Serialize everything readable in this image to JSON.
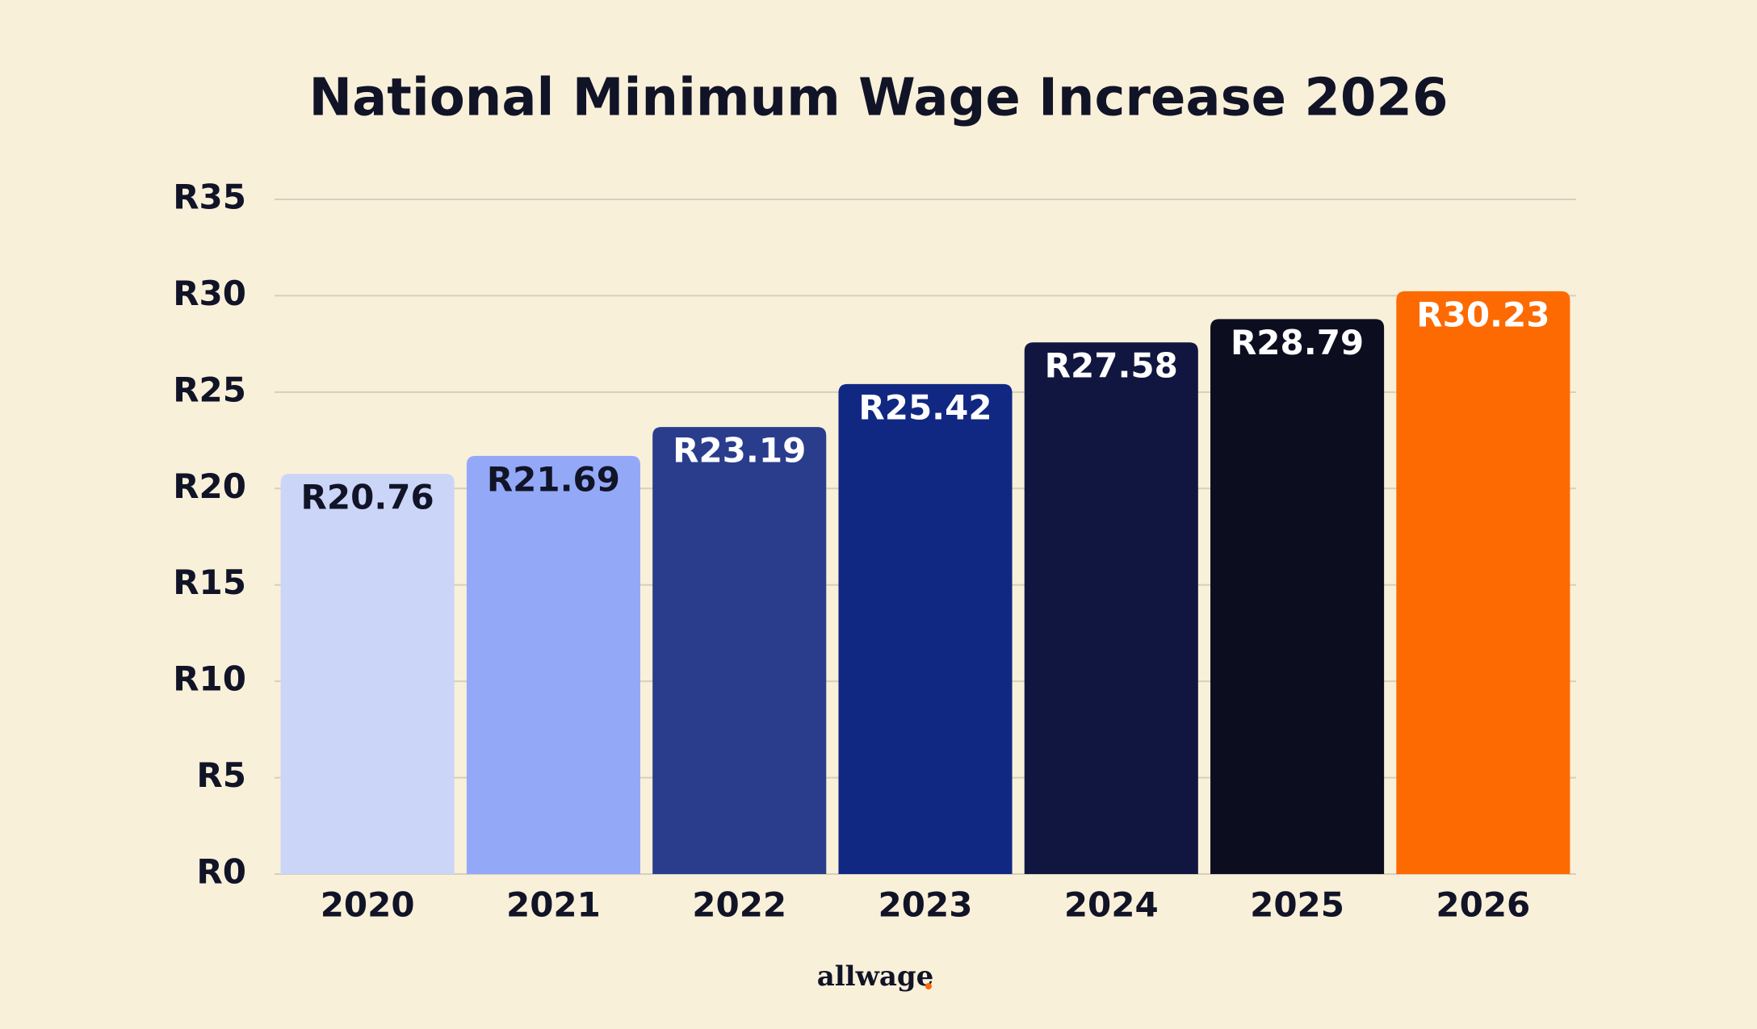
{
  "chart_data": {
    "type": "bar",
    "title": "National Minimum Wage Increase 2026",
    "categories": [
      "2020",
      "2021",
      "2022",
      "2023",
      "2024",
      "2025",
      "2026"
    ],
    "values": [
      20.76,
      21.69,
      23.19,
      25.42,
      27.58,
      28.79,
      30.23
    ],
    "value_labels": [
      "R20.76",
      "R21.69",
      "R23.19",
      "R25.42",
      "R27.58",
      "R28.79",
      "R30.23"
    ],
    "colors": [
      "#cbd5f7",
      "#94a8f8",
      "#2a3d8c",
      "#112883",
      "#111641",
      "#0c0e20",
      "#fd6a02"
    ],
    "label_colors": [
      "#111427",
      "#111427",
      "#ffffff",
      "#ffffff",
      "#ffffff",
      "#ffffff",
      "#ffffff"
    ],
    "ylim": [
      0,
      35
    ],
    "yticks": [
      {
        "value": 0,
        "label": "R0"
      },
      {
        "value": 5,
        "label": "R5"
      },
      {
        "value": 10,
        "label": "R10"
      },
      {
        "value": 15,
        "label": "R15"
      },
      {
        "value": 20,
        "label": "R20"
      },
      {
        "value": 25,
        "label": "R25"
      },
      {
        "value": 30,
        "label": "R30"
      },
      {
        "value": 35,
        "label": "R35"
      }
    ],
    "grid": true,
    "source": "allwage"
  }
}
